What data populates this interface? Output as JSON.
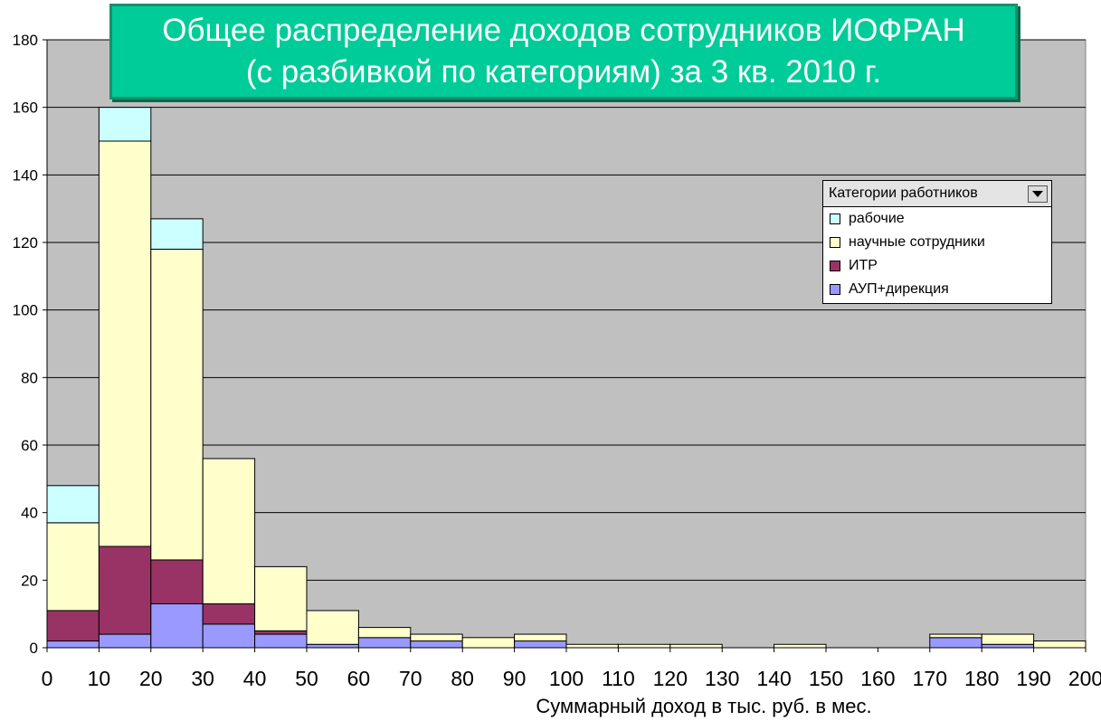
{
  "chart_data": {
    "type": "bar",
    "stacked": true,
    "title": [
      "Общее распределение доходов сотрудников ИОФРАН",
      "(с разбивкой по категориям) за 3 кв. 2010 г."
    ],
    "xlabel": "Суммарный доход в тыс. руб. в мес.",
    "ylabel": "",
    "ylim": [
      0,
      180
    ],
    "yticks": [
      0,
      20,
      40,
      60,
      80,
      100,
      120,
      140,
      160,
      180
    ],
    "xlim": [
      0,
      200
    ],
    "xticks": [
      0,
      10,
      20,
      30,
      40,
      50,
      60,
      70,
      80,
      90,
      100,
      110,
      120,
      130,
      140,
      150,
      160,
      170,
      180,
      190,
      200
    ],
    "grid": "horizontal",
    "bin_starts": [
      0,
      10,
      20,
      30,
      40,
      50,
      60,
      70,
      80,
      90,
      100,
      110,
      120,
      130,
      140,
      150,
      160,
      170,
      180,
      190
    ],
    "bin_width": 10,
    "series": [
      {
        "name": "АУП+дирекция",
        "color": "#9999ff",
        "values": [
          2,
          4,
          13,
          7,
          4,
          1,
          3,
          2,
          0,
          2,
          0,
          0,
          0,
          0,
          0,
          0,
          0,
          3,
          1,
          0
        ]
      },
      {
        "name": "ИТР",
        "color": "#993366",
        "values": [
          9,
          26,
          13,
          6,
          1,
          0,
          0,
          0,
          0,
          0,
          0,
          0,
          0,
          0,
          0,
          0,
          0,
          0,
          0,
          0
        ]
      },
      {
        "name": "научные сотрудники",
        "color": "#ffffcc",
        "values": [
          26,
          120,
          92,
          43,
          19,
          10,
          3,
          2,
          3,
          2,
          1,
          1,
          1,
          0,
          1,
          0,
          0,
          1,
          3,
          2
        ]
      },
      {
        "name": "рабочие",
        "color": "#ccffff",
        "values": [
          11,
          10,
          9,
          0,
          0,
          0,
          0,
          0,
          0,
          0,
          0,
          0,
          0,
          0,
          0,
          0,
          0,
          0,
          0,
          0
        ]
      }
    ],
    "legend": {
      "title": "Категории работников",
      "placement": "right",
      "order": [
        "рабочие",
        "научные сотрудники",
        "ИТР",
        "АУП+дирекция"
      ]
    },
    "plot_background": "#c0c0c0"
  },
  "title_box_color": "#00cc99"
}
